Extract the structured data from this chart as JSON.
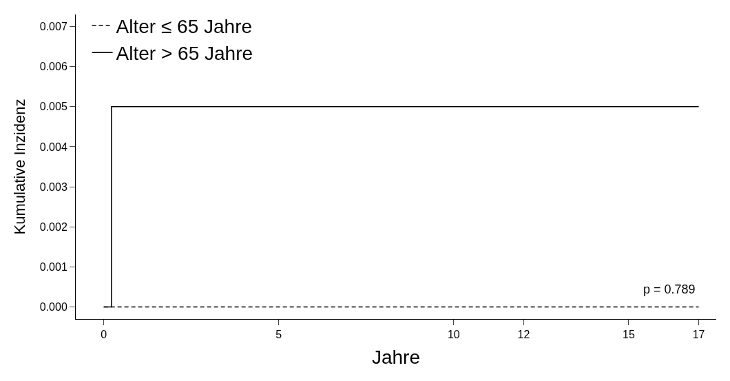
{
  "chart_data": {
    "type": "step",
    "xlabel": "Jahre",
    "ylabel": "Kumulative Inzidenz",
    "series": [
      {
        "name": "Alter ≤ 65 Jahre",
        "color": "#000000",
        "line_style": "dashed",
        "x": [
          0,
          17
        ],
        "values": [
          0,
          0
        ]
      },
      {
        "name": "Alter > 65 Jahre",
        "color": "#000000",
        "line_style": "solid",
        "x": [
          0,
          0.22,
          17
        ],
        "values": [
          0,
          0.005,
          0.005
        ]
      }
    ],
    "xlim": [
      -0.8,
      17.5
    ],
    "xticks": [
      0,
      5,
      10,
      12,
      15,
      17
    ],
    "ylim": [
      -0.0003,
      0.0073
    ],
    "yticks": [
      {
        "value": 0,
        "label": "0.000"
      },
      {
        "value": 0.001,
        "label": "0.001"
      },
      {
        "value": 0.002,
        "label": "0.002"
      },
      {
        "value": 0.003,
        "label": "0.003"
      },
      {
        "value": 0.004,
        "label": "0.004"
      },
      {
        "value": 0.005,
        "label": "0.005"
      },
      {
        "value": 0.006,
        "label": "0.006"
      },
      {
        "value": 0.007,
        "label": "0.007"
      }
    ],
    "annotations": [
      "p = 0.789"
    ],
    "legend": "top left",
    "marker": "none"
  }
}
